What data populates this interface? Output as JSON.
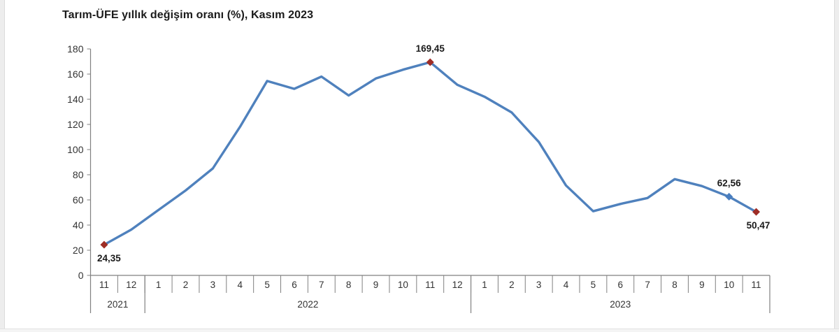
{
  "title": "Tarım-ÜFE yıllık değişim oranı (%), Kasım 2023",
  "chart_data": {
    "type": "line",
    "title": "Tarım-ÜFE yıllık değişim oranı (%), Kasım 2023",
    "xlabel": "",
    "ylabel": "",
    "ylim": [
      0,
      180
    ],
    "ytick_step": 20,
    "grid": false,
    "legend": "none",
    "categories_months": [
      "11",
      "12",
      "1",
      "2",
      "3",
      "4",
      "5",
      "6",
      "7",
      "8",
      "9",
      "10",
      "11",
      "12",
      "1",
      "2",
      "3",
      "4",
      "5",
      "6",
      "7",
      "8",
      "9",
      "10",
      "11"
    ],
    "year_groups": [
      {
        "label": "2021",
        "from": 0,
        "to": 2
      },
      {
        "label": "2022",
        "from": 2,
        "to": 14
      },
      {
        "label": "2023",
        "from": 14,
        "to": 25
      }
    ],
    "series": [
      {
        "name": "Tarım-ÜFE yıllık değişim oranı (%)",
        "values": [
          24.35,
          36.4,
          52.0,
          67.5,
          85.0,
          118.0,
          154.5,
          148.3,
          158.0,
          143.0,
          156.5,
          163.5,
          169.45,
          151.5,
          142.0,
          129.5,
          106.0,
          71.5,
          51.0,
          56.8,
          61.5,
          76.5,
          71.0,
          62.56,
          50.47
        ]
      }
    ],
    "markers": [
      {
        "index": 0,
        "color_role": "red"
      },
      {
        "index": 12,
        "color_role": "red"
      },
      {
        "index": 23,
        "color_role": "blue"
      },
      {
        "index": 24,
        "color_role": "red"
      }
    ],
    "annotations": [
      {
        "index": 0,
        "text": "24,35",
        "position": "below"
      },
      {
        "index": 12,
        "text": "169,45",
        "position": "above"
      },
      {
        "index": 23,
        "text": "62,56",
        "position": "above"
      },
      {
        "index": 24,
        "text": "50,47",
        "position": "below"
      }
    ],
    "colors": {
      "line": "#4f81bd",
      "marker_red": "#9e2d26",
      "marker_blue": "#4a7ebf",
      "axis": "#808080",
      "tick_text": "#333333",
      "annotation_text": "#1a1a1a"
    }
  }
}
